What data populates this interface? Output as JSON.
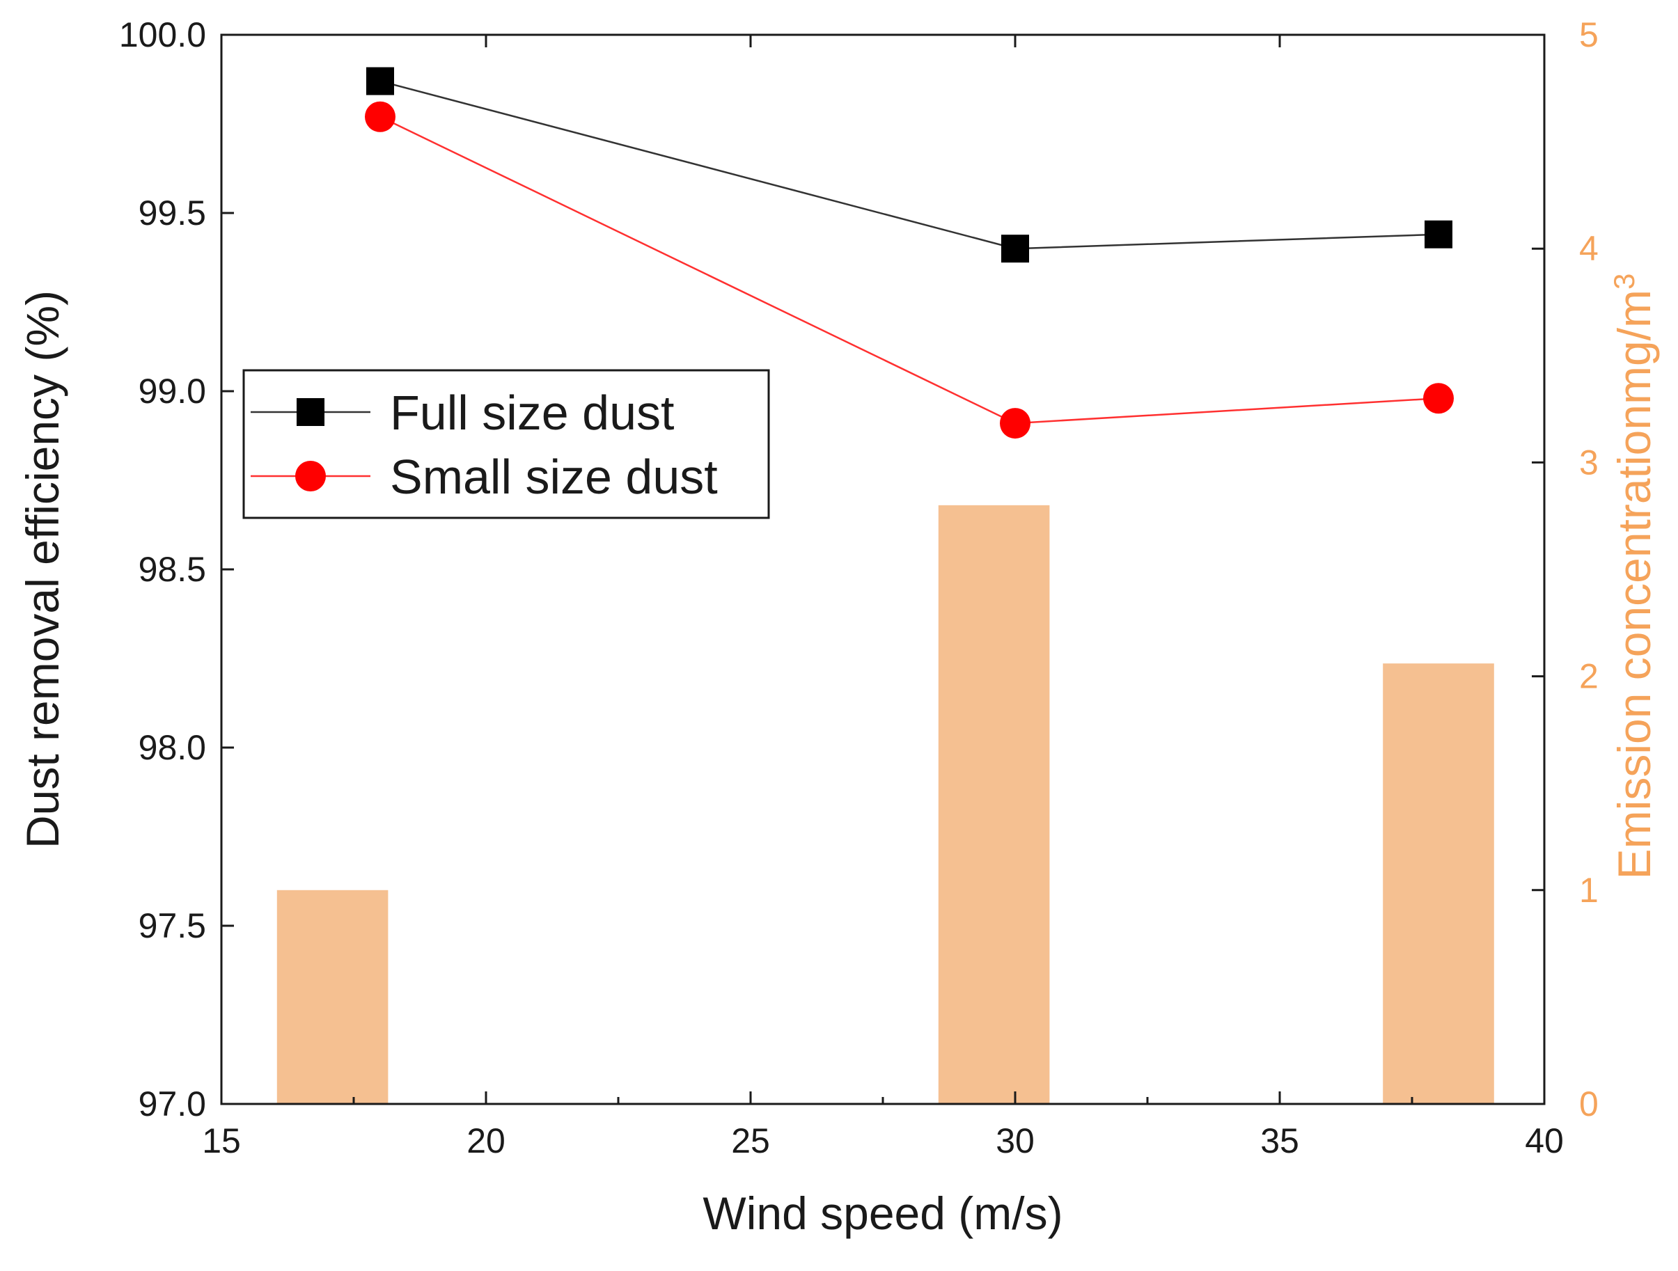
{
  "chart_data": {
    "type": "bar+line",
    "title": "",
    "xlabel": "Wind speed (m/s)",
    "ylabel_left": "Dust removal efficiency (%)",
    "ylabel_right": "Emission concentrationmg/m",
    "ylabel_right_sup": "3",
    "xlim": [
      15,
      40
    ],
    "ylim_left": [
      97.0,
      100.0
    ],
    "ylim_right": [
      0,
      5
    ],
    "x_ticks": [
      "15",
      "20",
      "25",
      "30",
      "35",
      "40"
    ],
    "y_left_ticks": [
      "97.0",
      "97.5",
      "98.0",
      "98.5",
      "99.0",
      "99.5",
      "100.0"
    ],
    "y_right_ticks": [
      "0",
      "1",
      "2",
      "3",
      "4",
      "5"
    ],
    "grid": false,
    "legend_position": "middle-left",
    "bars": {
      "name": "",
      "axis": "right",
      "color": "#f5c091",
      "x": [
        17.1,
        29.6,
        38.0
      ],
      "values": [
        1.0,
        2.8,
        2.06
      ],
      "width": 2.1
    },
    "series": [
      {
        "name": "Full size dust",
        "axis": "left",
        "marker": "square",
        "color": "#000000",
        "line_color": "#333333",
        "x": [
          18,
          30,
          38
        ],
        "values": [
          99.87,
          99.4,
          99.44
        ]
      },
      {
        "name": "Small size dust",
        "axis": "left",
        "marker": "circle",
        "color": "#ff0000",
        "line_color": "#ff3030",
        "x": [
          18,
          30,
          38
        ],
        "values": [
          99.77,
          98.91,
          98.98
        ]
      }
    ],
    "colors": {
      "axis": "#1a1a1a",
      "right_axis": "#f5a35a"
    }
  }
}
